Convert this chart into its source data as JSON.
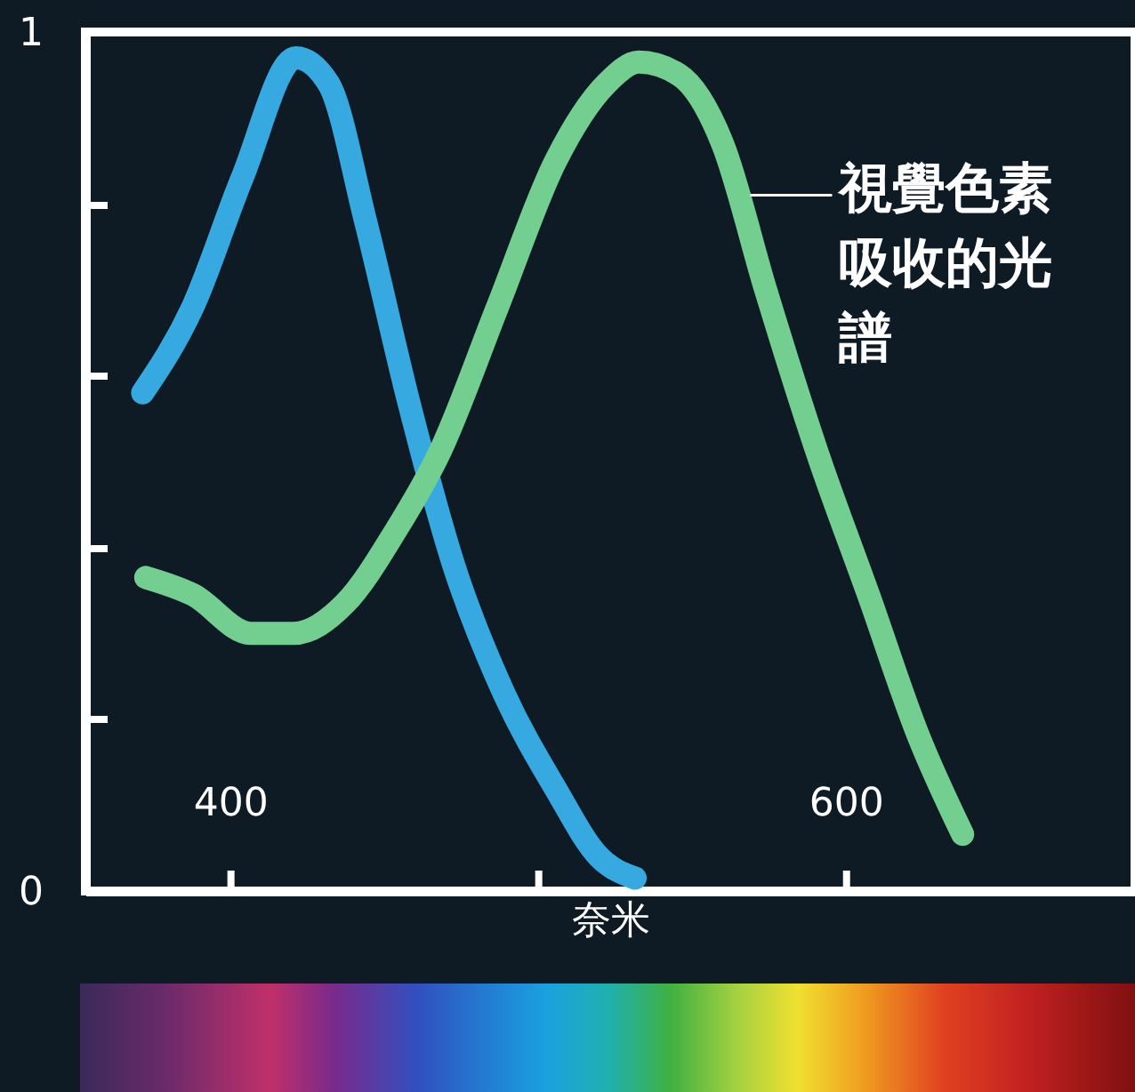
{
  "chart_data": {
    "type": "line",
    "xlabel": "奈米",
    "xlim": [
      353,
      694
    ],
    "ylim": [
      0,
      1
    ],
    "xticks": [
      400,
      {
        "value": 500,
        "label": null
      },
      600
    ],
    "yticks": [
      0,
      {
        "value": 0.2,
        "label": null
      },
      {
        "value": 0.4,
        "label": null
      },
      {
        "value": 0.6,
        "label": null
      },
      {
        "value": 0.8,
        "label": null
      },
      1
    ],
    "series": [
      {
        "color": "#35a9e0",
        "x": [
          371.6,
          387.9,
          403.9,
          421.4,
          432,
          444,
          458,
          472.6,
          489,
          505.6,
          519.8,
          531.6
        ],
        "values": [
          0.58,
          0.68,
          0.83,
          0.97,
          0.94,
          0.78,
          0.57,
          0.38,
          0.23,
          0.12,
          0.04,
          0.015
        ]
      },
      {
        "color": "#72cf90",
        "x": [
          372.6,
          387.9,
          406.7,
          420.7,
          437.4,
          453.9,
          468,
          486.9,
          505.8,
          522.3,
          532.8,
          545.9,
          560,
          574,
          590.8,
          607.4,
          623.7,
          638
        ],
        "values": [
          0.365,
          0.345,
          0.3,
          0.3,
          0.335,
          0.42,
          0.51,
          0.68,
          0.85,
          0.94,
          0.965,
          0.95,
          0.87,
          0.7,
          0.51,
          0.345,
          0.18,
          0.066
        ]
      }
    ],
    "annotations": [
      {
        "text": "視覺色素吸收的光譜",
        "x": 569,
        "y": 0.81
      }
    ]
  }
}
